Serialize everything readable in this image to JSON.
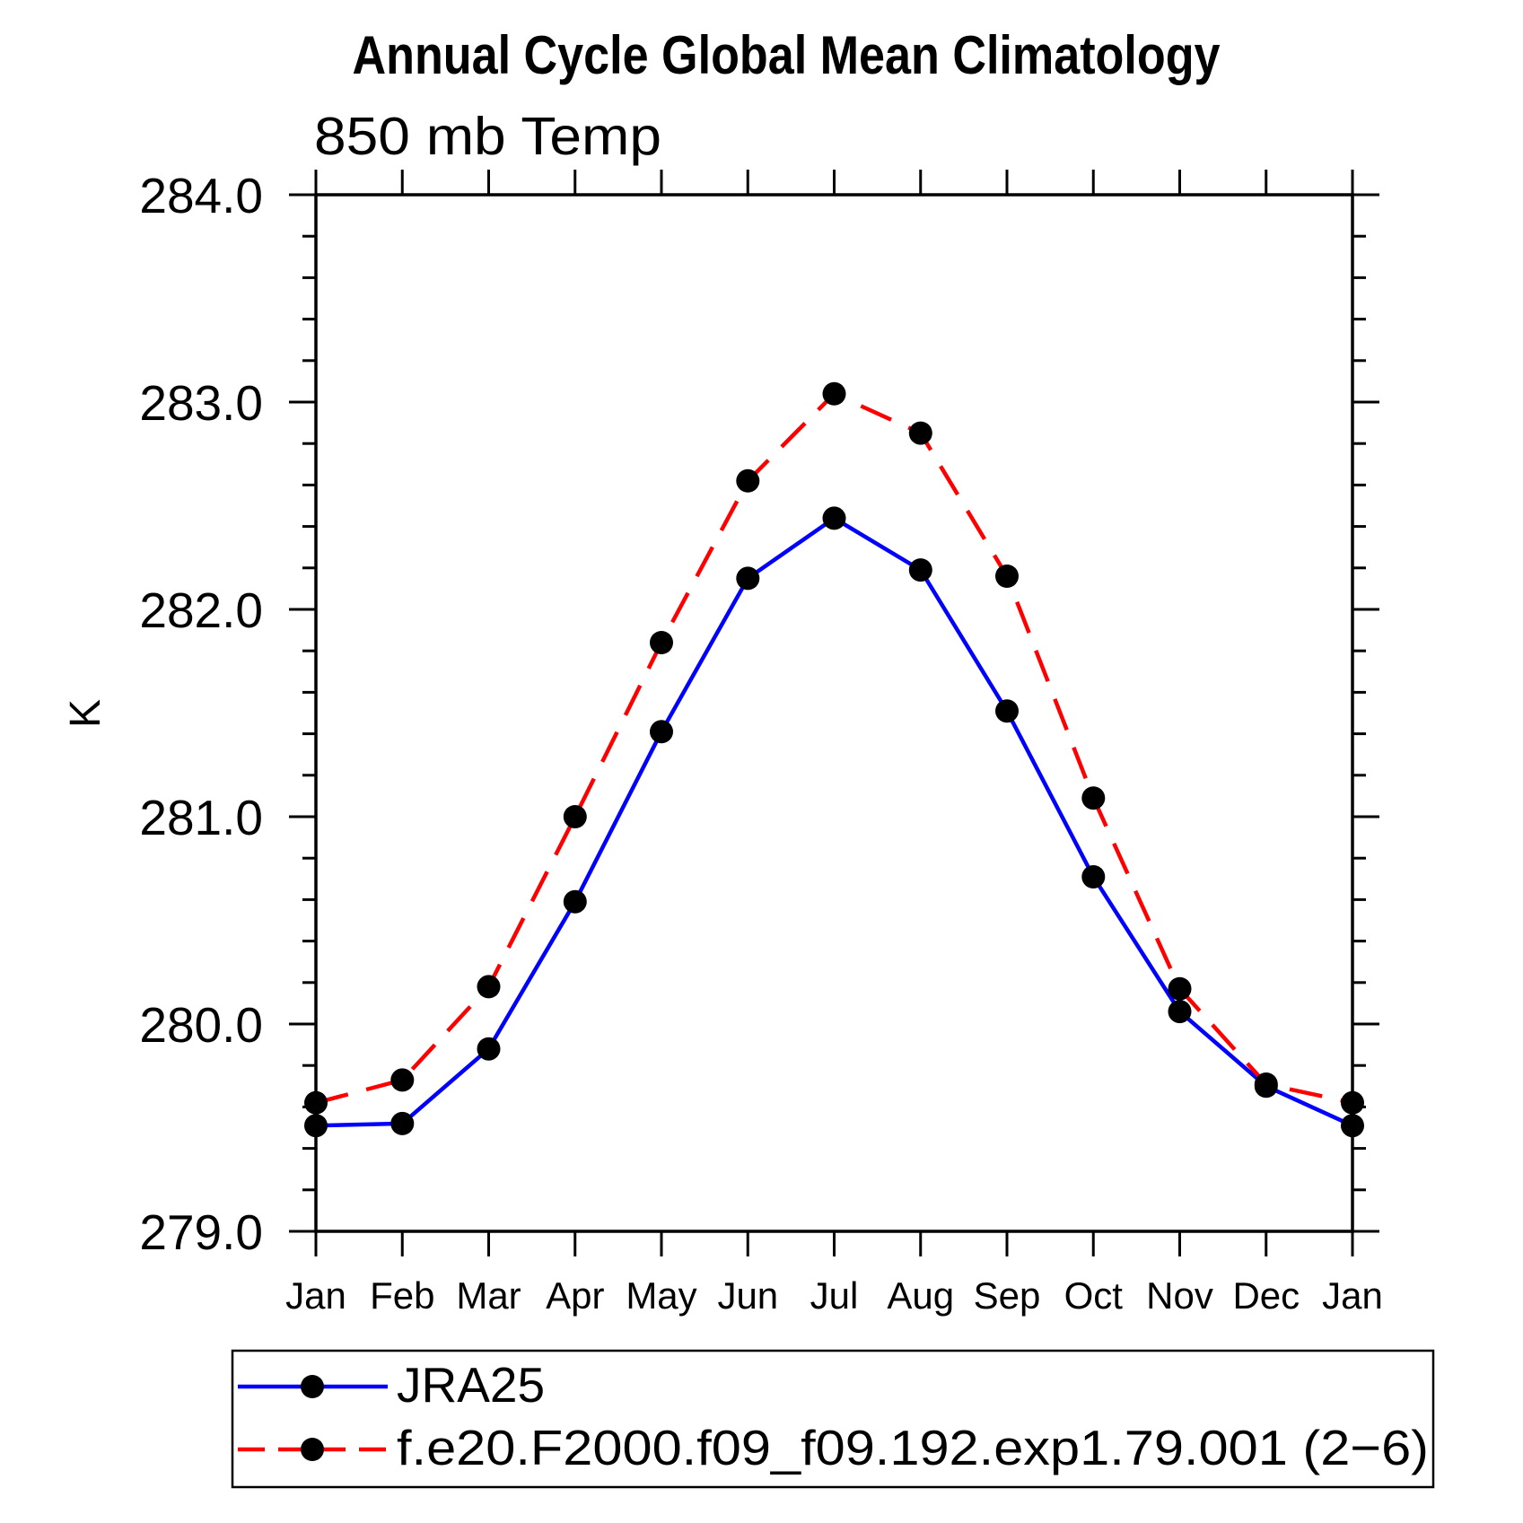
{
  "chart_data": {
    "type": "line",
    "title": "Annual Cycle Global Mean Climatology",
    "subtitle": "850 mb Temp",
    "ylabel": "K",
    "xlabel": "",
    "categories": [
      "Jan",
      "Feb",
      "Mar",
      "Apr",
      "May",
      "Jun",
      "Jul",
      "Aug",
      "Sep",
      "Oct",
      "Nov",
      "Dec",
      "Jan"
    ],
    "y_tick_labels": [
      "284.0",
      "283.0",
      "282.0",
      "281.0",
      "280.0",
      "279.0"
    ],
    "ylim": [
      279.0,
      284.0
    ],
    "y_major_step": 1.0,
    "y_minor_step": 0.2,
    "grid": false,
    "legend_position": "bottom-left framed box",
    "background_color": "#ffffff",
    "axis_color": "#000000",
    "text_color": "#000000",
    "marker_color": "#000000",
    "series": [
      {
        "name": "JRA25",
        "line_color": "#0000ff",
        "line_style": "solid",
        "marker": "filled-circle",
        "values": [
          279.51,
          279.52,
          279.88,
          280.59,
          281.41,
          282.15,
          282.44,
          282.19,
          281.51,
          280.71,
          280.06,
          279.7,
          279.51
        ]
      },
      {
        "name": "f.e20.F2000.f09_f09.192.exp1.79.001 (2−6)",
        "line_color": "#ff0000",
        "line_style": "dashed",
        "marker": "filled-circle",
        "values": [
          279.62,
          279.73,
          280.18,
          281.0,
          281.84,
          282.62,
          283.04,
          282.85,
          282.16,
          281.09,
          280.17,
          279.71,
          279.62
        ]
      }
    ]
  }
}
